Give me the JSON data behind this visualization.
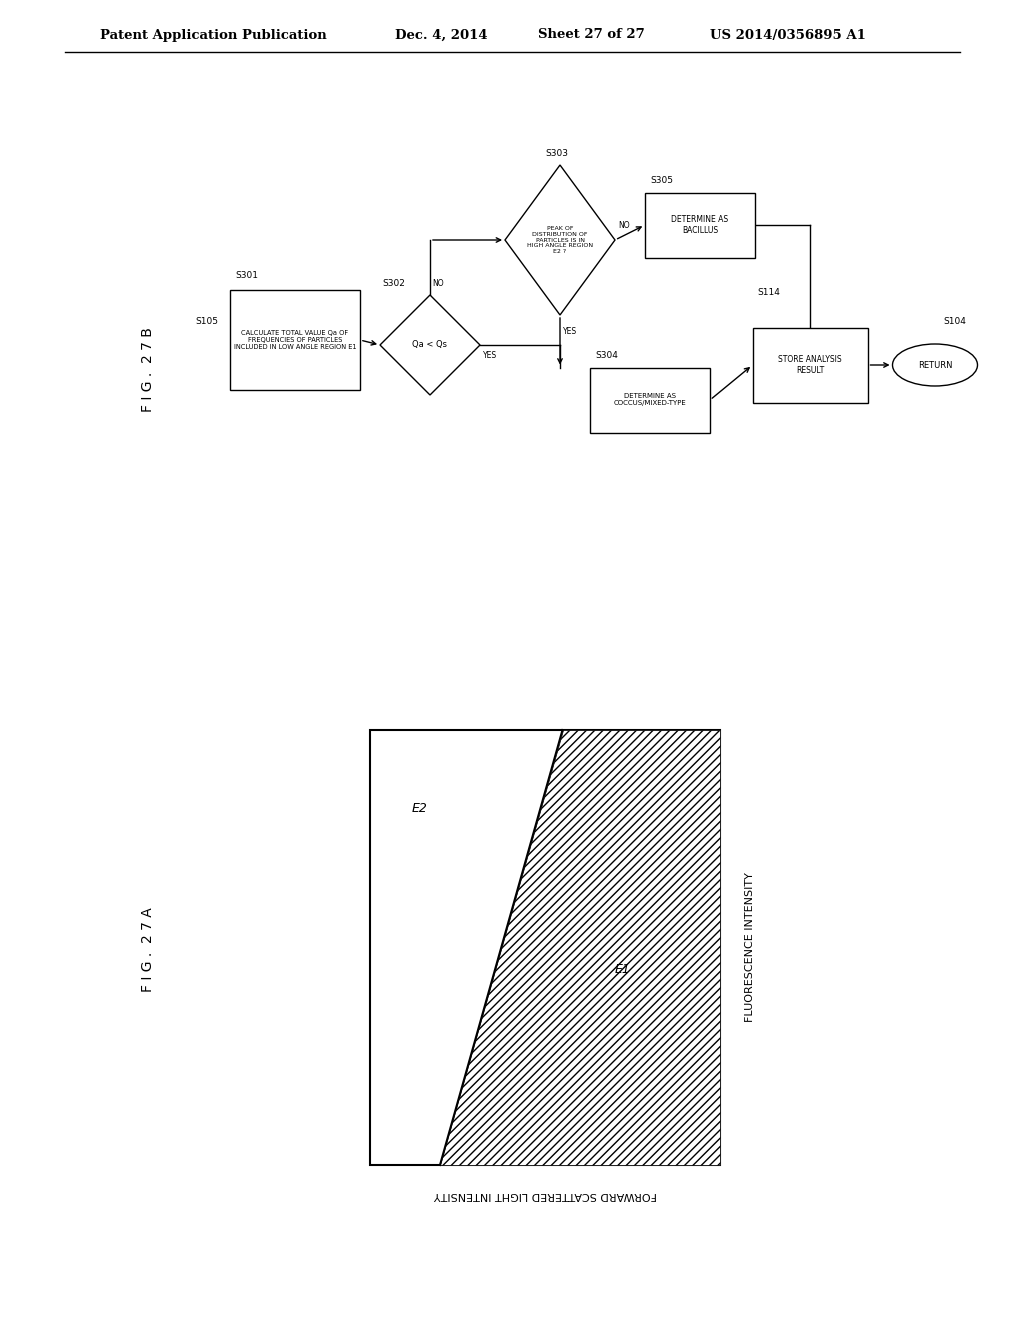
{
  "page_header_left": "Patent Application Publication",
  "page_header_date": "Dec. 4, 2014",
  "page_header_sheet": "Sheet 27 of 27",
  "page_header_patent": "US 2014/0356895 A1",
  "fig_a_label": "F I G .  2 7 A",
  "fig_b_label": "F I G .  2 7 B",
  "fig_a_xlabel": "FORWARD SCATTERED LIGHT INTENSITY",
  "fig_a_ylabel": "FLUORESCENCE INTENSITY",
  "fig_a_region_e2": "E2",
  "fig_a_region_e1": "E1",
  "background": "#ffffff"
}
